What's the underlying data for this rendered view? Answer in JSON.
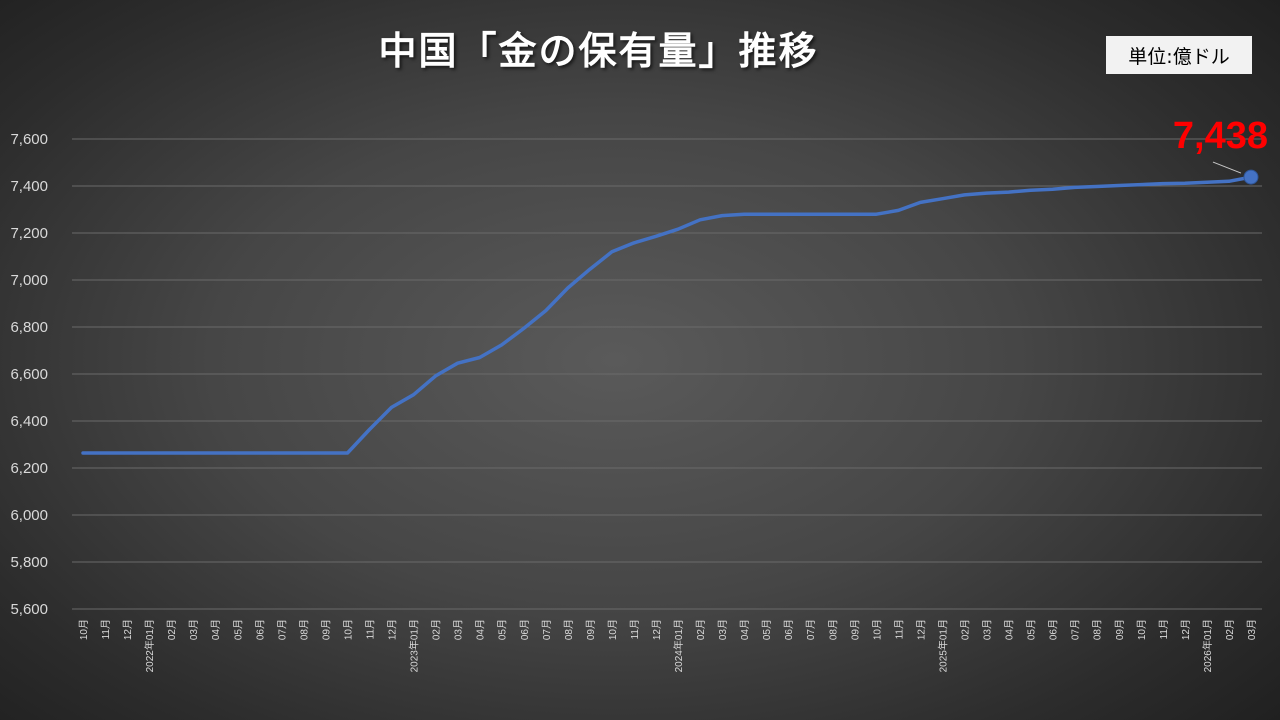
{
  "title": "中国「金の保有量」推移",
  "unit_label": "単位:億ドル",
  "colors": {
    "line": "#4472c4",
    "marker": "#4472c4",
    "last_value_label": "#ff0000",
    "gridline": "#6a6a6a",
    "tick_text": "#d9d9d9"
  },
  "chart_data": {
    "type": "line",
    "title": "中国「金の保有量」推移",
    "xlabel": "",
    "ylabel": "",
    "ylim": [
      5600,
      7600
    ],
    "ytick_values": [
      5600,
      5800,
      6000,
      6200,
      6400,
      6600,
      6800,
      7000,
      7200,
      7400,
      7600
    ],
    "ytick_labels": [
      "5,600",
      "5,800",
      "6,000",
      "6,200",
      "6,400",
      "6,600",
      "6,800",
      "7,000",
      "7,200",
      "7,400",
      "7,600"
    ],
    "grid": true,
    "categories": [
      "10月",
      "11月",
      "12月",
      "2022年01月",
      "02月",
      "03月",
      "04月",
      "05月",
      "06月",
      "07月",
      "08月",
      "09月",
      "10月",
      "11月",
      "12月",
      "2023年01月",
      "02月",
      "03月",
      "04月",
      "05月",
      "06月",
      "07月",
      "08月",
      "09月",
      "10月",
      "11月",
      "12月",
      "2024年01月",
      "02月",
      "03月",
      "04月",
      "05月",
      "06月",
      "07月",
      "08月",
      "09月",
      "10月",
      "11月",
      "12月",
      "2025年01月",
      "02月",
      "03月",
      "04月",
      "05月",
      "06月",
      "07月",
      "08月",
      "09月",
      "10月",
      "11月",
      "12月",
      "2026年01月",
      "02月",
      "03月"
    ],
    "series": [
      {
        "values": [
          6264,
          6264,
          6264,
          6264,
          6264,
          6264,
          6264,
          6264,
          6264,
          6264,
          6264,
          6264,
          6264,
          6364,
          6458,
          6512,
          6592,
          6646,
          6670,
          6724,
          6794,
          6870,
          6966,
          7046,
          7120,
          7158,
          7186,
          7216,
          7256,
          7274,
          7280,
          7280,
          7280,
          7280,
          7280,
          7280,
          7280,
          7296,
          7330,
          7346,
          7362,
          7370,
          7374,
          7382,
          7386,
          7394,
          7398,
          7402,
          7406,
          7410,
          7412,
          7416,
          7420,
          7438
        ]
      }
    ],
    "last_value_label": "7,438"
  }
}
